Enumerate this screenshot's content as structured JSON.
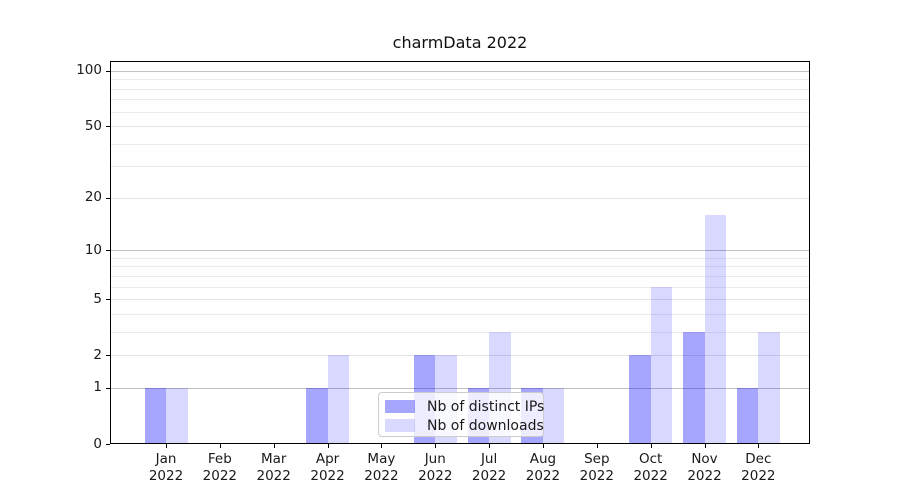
{
  "chart_data": {
    "type": "bar",
    "title": "charmData 2022",
    "x": {
      "months": [
        "Jan",
        "Feb",
        "Mar",
        "Apr",
        "May",
        "Jun",
        "Jul",
        "Aug",
        "Sep",
        "Oct",
        "Nov",
        "Dec"
      ],
      "year": "2022"
    },
    "series": [
      {
        "name": "Nb of distinct IPs",
        "color": "rgba(0,0,255,0.35)",
        "values": [
          1,
          0,
          0,
          1,
          0,
          2,
          1,
          1,
          0,
          2,
          3,
          1
        ]
      },
      {
        "name": "Nb of downloads",
        "color": "rgba(0,0,255,0.15)",
        "values": [
          1,
          0,
          0,
          2,
          0,
          2,
          3,
          1,
          0,
          6,
          16,
          3
        ]
      }
    ],
    "yscale": "log1p",
    "ylim": [
      0,
      113
    ],
    "y_ticks": [
      0,
      1,
      2,
      5,
      10,
      20,
      50,
      100
    ],
    "y_gridlines": {
      "major": [
        1,
        10,
        100
      ],
      "mid": [
        2,
        5,
        20,
        50
      ],
      "minor": [
        3,
        4,
        6,
        7,
        8,
        9,
        30,
        40,
        60,
        70,
        80,
        90
      ]
    },
    "grid": true,
    "legend_position": "lower-center"
  },
  "colors": {
    "background": "#ffffff",
    "grid_major": "#c0c0c0",
    "grid_mid": "#e3e3e3",
    "grid_minor": "#ebebeb",
    "spine": "#000000",
    "text": "#1a1a1a",
    "legend_border": "#cccccc",
    "legend_background": "rgba(255,255,255,0.8)"
  }
}
